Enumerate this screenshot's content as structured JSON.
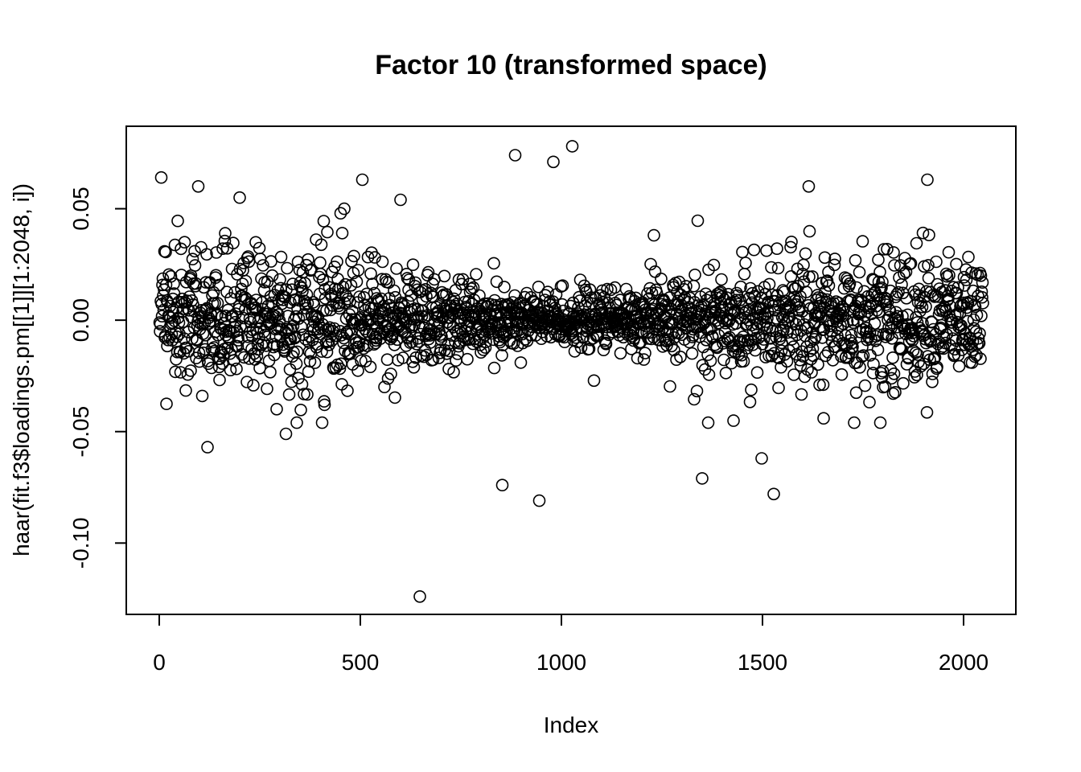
{
  "chart_data": {
    "type": "scatter",
    "title": "Factor 10 (transformed space)",
    "xlabel": "Index",
    "ylabel": "haar(fit.f3$loadings.pm[[1]][1:2048, i])",
    "xlim": [
      -82,
      2130
    ],
    "ylim": [
      -0.132,
      0.087
    ],
    "x_ticks": [
      0,
      500,
      1000,
      1500,
      2000
    ],
    "x_tick_labels": [
      "0",
      "500",
      "1000",
      "1500",
      "2000"
    ],
    "y_ticks": [
      0.05,
      0.0,
      -0.05,
      -0.1
    ],
    "y_tick_labels": [
      "0.05",
      "0.00",
      "-0.05",
      "-0.10"
    ],
    "grid": false,
    "marker": "open-circle",
    "n_points": 2048,
    "notable_points": [
      {
        "x": 5,
        "y": 0.064
      },
      {
        "x": 97,
        "y": 0.06
      },
      {
        "x": 200,
        "y": 0.055
      },
      {
        "x": 120,
        "y": -0.057
      },
      {
        "x": 315,
        "y": -0.051
      },
      {
        "x": 505,
        "y": 0.063
      },
      {
        "x": 600,
        "y": 0.054
      },
      {
        "x": 648,
        "y": -0.124
      },
      {
        "x": 853,
        "y": -0.074
      },
      {
        "x": 885,
        "y": 0.074
      },
      {
        "x": 945,
        "y": -0.081
      },
      {
        "x": 980,
        "y": 0.071
      },
      {
        "x": 1027,
        "y": 0.078
      },
      {
        "x": 1498,
        "y": -0.062
      },
      {
        "x": 1528,
        "y": -0.078
      },
      {
        "x": 1350,
        "y": -0.071
      },
      {
        "x": 1615,
        "y": 0.06
      },
      {
        "x": 1910,
        "y": 0.063
      },
      {
        "x": 1793,
        "y": -0.046
      }
    ]
  }
}
